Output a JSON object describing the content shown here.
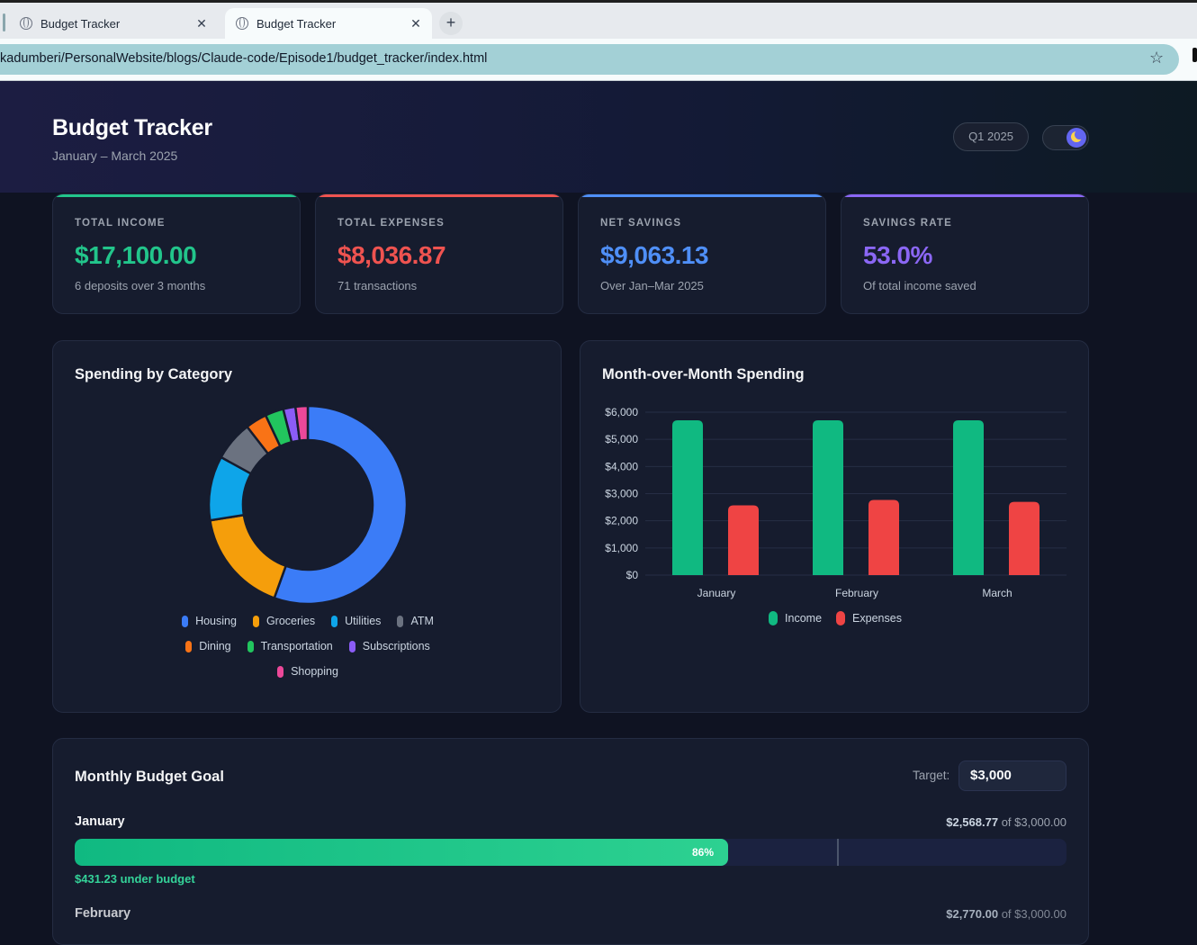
{
  "browser": {
    "tabs": [
      {
        "title": "Budget Tracker",
        "active": false
      },
      {
        "title": "Budget Tracker",
        "active": true
      }
    ],
    "url": "kadumberi/PersonalWebsite/blogs/Claude-code/Episode1/budget_tracker/index.html"
  },
  "header": {
    "title": "Budget Tracker",
    "subtitle": "January – March 2025",
    "period": "Q1 2025"
  },
  "cards": [
    {
      "label": "TOTAL INCOME",
      "value": "$17,100.00",
      "sub": "6 deposits over 3 months",
      "color": "#22c58b"
    },
    {
      "label": "TOTAL EXPENSES",
      "value": "$8,036.87",
      "sub": "71 transactions",
      "color": "#ef5350"
    },
    {
      "label": "NET SAVINGS",
      "value": "$9,063.13",
      "sub": "Over Jan–Mar 2025",
      "color": "#4f8ff7"
    },
    {
      "label": "SAVINGS RATE",
      "value": "53.0%",
      "sub": "Of total income saved",
      "color": "#8b67f5"
    }
  ],
  "category_panel": {
    "title": "Spending by Category"
  },
  "month_panel": {
    "title": "Month-over-Month Spending"
  },
  "chart_data": [
    {
      "type": "pie",
      "title": "Spending by Category",
      "donut": true,
      "legend_position": "bottom",
      "categories": [
        "Housing",
        "Groceries",
        "Utilities",
        "ATM",
        "Dining",
        "Transportation",
        "Subscriptions",
        "Shopping"
      ],
      "values": [
        55.5,
        17.0,
        10.5,
        6.5,
        3.5,
        3.0,
        2.0,
        2.0
      ],
      "colors": [
        "#3b7cf7",
        "#f59e0b",
        "#0ea5e9",
        "#6b7280",
        "#f97316",
        "#22c55e",
        "#8b5cf6",
        "#ec4899"
      ]
    },
    {
      "type": "bar",
      "title": "Month-over-Month Spending",
      "categories": [
        "January",
        "February",
        "March"
      ],
      "series": [
        {
          "name": "Income",
          "values": [
            5700,
            5700,
            5700
          ],
          "color": "#10b981"
        },
        {
          "name": "Expenses",
          "values": [
            2568.77,
            2770,
            2698
          ],
          "color": "#ef4444"
        }
      ],
      "ylim": [
        0,
        6000
      ],
      "yticks": [
        "$0",
        "$1,000",
        "$2,000",
        "$3,000",
        "$4,000",
        "$5,000",
        "$6,000"
      ],
      "grid": true,
      "legend_position": "bottom"
    }
  ],
  "goal": {
    "title": "Monthly Budget Goal",
    "target_label": "Target:",
    "target_value": "$3,000",
    "months": [
      {
        "name": "January",
        "spent": "$2,568.77",
        "of_text": "of $3,000.00",
        "percent": 86,
        "pct_label": "86%",
        "status": "$431.23 under budget"
      },
      {
        "name": "February",
        "spent": "$2,770.00",
        "of_text": "of $3,000.00"
      }
    ]
  }
}
